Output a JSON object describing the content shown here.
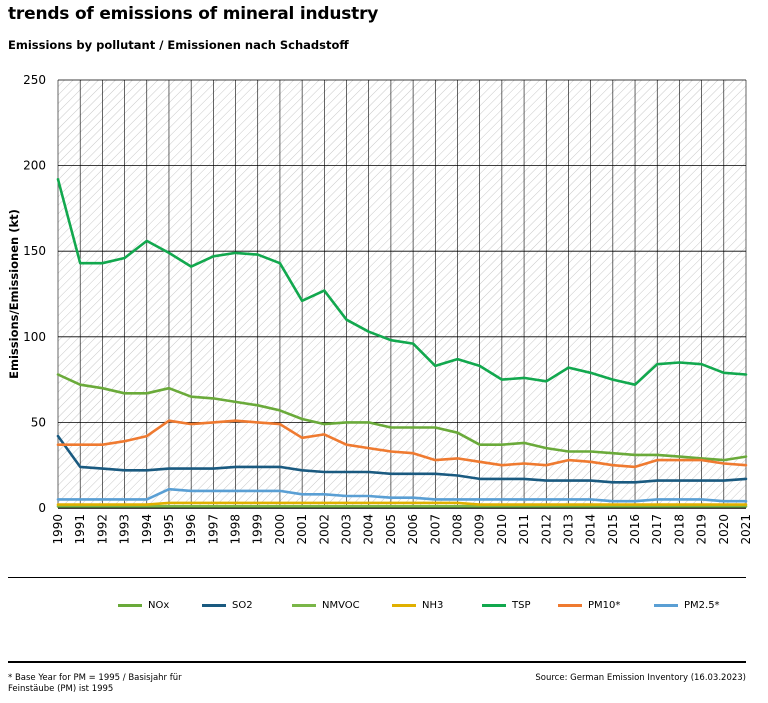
{
  "header": {
    "title": "trends of emissions of mineral industry",
    "subtitle": "Emissions by pollutant / Emissionen nach Schadstoff"
  },
  "footer": {
    "footnote": "* Base Year for PM = 1995 / Basisjahr für Feinstäube (PM) ist 1995",
    "source": "Source: German Emission Inventory (16.03.2023)"
  },
  "chart_data": {
    "type": "line",
    "ylabel": "Emissions/Emissionen (kt)",
    "ylim": [
      0,
      250
    ],
    "yticks": [
      0,
      50,
      100,
      150,
      200,
      250
    ],
    "grid": true,
    "legend_position": "bottom",
    "x": [
      "1990",
      "1991",
      "1992",
      "1993",
      "1994",
      "1995",
      "1996",
      "1997",
      "1998",
      "1999",
      "2000",
      "2001",
      "2002",
      "2003",
      "2004",
      "2005",
      "2006",
      "2007",
      "2008",
      "2009",
      "2010",
      "2011",
      "2012",
      "2013",
      "2014",
      "2015",
      "2016",
      "2017",
      "2018",
      "2019",
      "2020",
      "2021"
    ],
    "series": [
      {
        "name": "NOx",
        "color": "#6aaa3a",
        "values": [
          78,
          72,
          70,
          67,
          67,
          70,
          65,
          64,
          62,
          60,
          57,
          52,
          49,
          50,
          50,
          47,
          47,
          47,
          44,
          37,
          37,
          38,
          35,
          33,
          33,
          32,
          31,
          31,
          30,
          29,
          28,
          30
        ]
      },
      {
        "name": "SO2",
        "color": "#1a5a80",
        "values": [
          42,
          24,
          23,
          22,
          22,
          23,
          23,
          23,
          24,
          24,
          24,
          22,
          21,
          21,
          21,
          20,
          20,
          20,
          19,
          17,
          17,
          17,
          16,
          16,
          16,
          15,
          15,
          16,
          16,
          16,
          16,
          17
        ]
      },
      {
        "name": "NMVOC",
        "color": "#7ab648",
        "values": [
          1,
          1,
          1,
          1,
          1,
          1,
          1,
          1,
          1,
          1,
          1,
          1,
          1,
          1,
          1,
          1,
          1,
          1,
          1,
          1,
          1,
          1,
          1,
          1,
          1,
          1,
          1,
          1,
          1,
          1,
          1,
          1
        ]
      },
      {
        "name": "NH3",
        "color": "#e0b000",
        "values": [
          2,
          2,
          2,
          2,
          2,
          3,
          3,
          3,
          3,
          3,
          3,
          3,
          3,
          3,
          3,
          3,
          3,
          3,
          3,
          2,
          2,
          2,
          2,
          2,
          2,
          2,
          2,
          2,
          2,
          2,
          2,
          2
        ]
      },
      {
        "name": "TSP",
        "color": "#12a84e",
        "values": [
          192,
          143,
          143,
          146,
          156,
          149,
          141,
          147,
          149,
          148,
          143,
          121,
          127,
          110,
          103,
          98,
          96,
          83,
          87,
          83,
          75,
          76,
          74,
          82,
          79,
          75,
          72,
          84,
          85,
          84,
          79,
          78
        ]
      },
      {
        "name": "PM10*",
        "color": "#ef7a30",
        "values": [
          37,
          37,
          37,
          39,
          42,
          51,
          49,
          50,
          51,
          50,
          49,
          41,
          43,
          37,
          35,
          33,
          32,
          28,
          29,
          27,
          25,
          26,
          25,
          28,
          27,
          25,
          24,
          28,
          28,
          28,
          26,
          25
        ]
      },
      {
        "name": "PM2.5*",
        "color": "#5a9fd4",
        "values": [
          5,
          5,
          5,
          5,
          5,
          11,
          10,
          10,
          10,
          10,
          10,
          8,
          8,
          7,
          7,
          6,
          6,
          5,
          5,
          5,
          5,
          5,
          5,
          5,
          5,
          4,
          4,
          5,
          5,
          5,
          4,
          4
        ]
      }
    ]
  }
}
